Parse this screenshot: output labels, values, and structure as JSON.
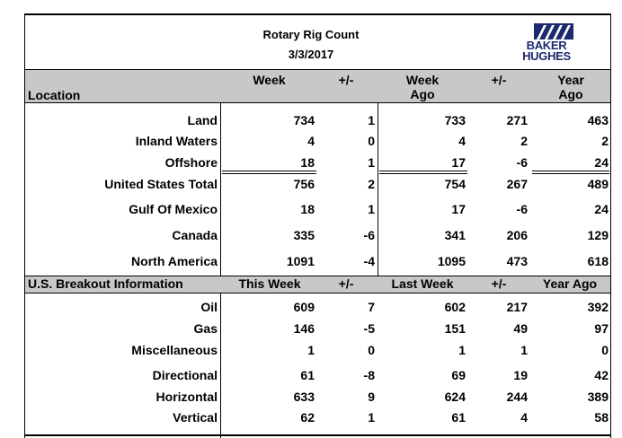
{
  "header": {
    "title": "Rotary Rig Count",
    "date": "3/3/2017",
    "logo_line1": "BAKER",
    "logo_line2": "HUGHES"
  },
  "location_header": {
    "label": "Location",
    "week": "Week",
    "pm1": "+/-",
    "week_ago_1": "Week",
    "week_ago_2": "Ago",
    "pm2": "+/-",
    "year_ago_1": "Year",
    "year_ago_2": "Ago"
  },
  "location_rows": [
    {
      "label": "Land",
      "week": "734",
      "chg1": "1",
      "week_ago": "733",
      "chg2": "271",
      "year_ago": "463"
    },
    {
      "label": "Inland Waters",
      "week": "4",
      "chg1": "0",
      "week_ago": "4",
      "chg2": "2",
      "year_ago": "2"
    },
    {
      "label": "Offshore",
      "week": "18",
      "chg1": "1",
      "week_ago": "17",
      "chg2": "-6",
      "year_ago": "24"
    },
    {
      "label": "United States Total",
      "week": "756",
      "chg1": "2",
      "week_ago": "754",
      "chg2": "267",
      "year_ago": "489"
    },
    {
      "label": "Gulf Of Mexico",
      "week": "18",
      "chg1": "1",
      "week_ago": "17",
      "chg2": "-6",
      "year_ago": "24"
    },
    {
      "label": "Canada",
      "week": "335",
      "chg1": "-6",
      "week_ago": "341",
      "chg2": "206",
      "year_ago": "129"
    },
    {
      "label": "North America",
      "week": "1091",
      "chg1": "-4",
      "week_ago": "1095",
      "chg2": "473",
      "year_ago": "618"
    }
  ],
  "breakout_header": {
    "label": "U.S. Breakout Information",
    "this_week": "This Week",
    "pm1": "+/-",
    "last_week": "Last Week",
    "pm2": "+/-",
    "year_ago": "Year Ago"
  },
  "breakout_rows": [
    {
      "label": "Oil",
      "week": "609",
      "chg1": "7",
      "week_ago": "602",
      "chg2": "217",
      "year_ago": "392"
    },
    {
      "label": "Gas",
      "week": "146",
      "chg1": "-5",
      "week_ago": "151",
      "chg2": "49",
      "year_ago": "97"
    },
    {
      "label": "Miscellaneous",
      "week": "1",
      "chg1": "0",
      "week_ago": "1",
      "chg2": "1",
      "year_ago": "0"
    },
    {
      "label": "Directional",
      "week": "61",
      "chg1": "-8",
      "week_ago": "69",
      "chg2": "19",
      "year_ago": "42"
    },
    {
      "label": "Horizontal",
      "week": "633",
      "chg1": "9",
      "week_ago": "624",
      "chg2": "244",
      "year_ago": "389"
    },
    {
      "label": "Vertical",
      "week": "62",
      "chg1": "1",
      "week_ago": "61",
      "chg2": "4",
      "year_ago": "58"
    }
  ],
  "colors": {
    "band": "#c8c8c8",
    "logo": "#1a2a6c"
  }
}
